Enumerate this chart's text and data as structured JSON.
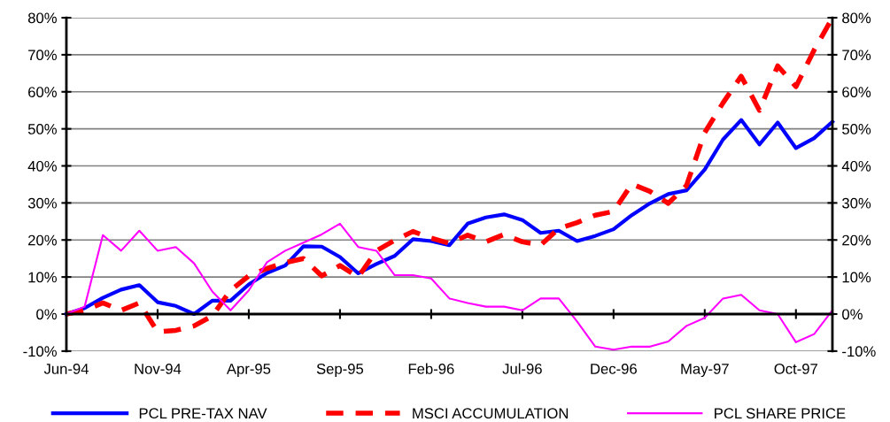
{
  "chart_data": {
    "type": "line",
    "categories": [
      "Jun-94",
      null,
      null,
      null,
      null,
      "Nov-94",
      null,
      null,
      null,
      null,
      "Apr-95",
      null,
      null,
      null,
      null,
      "Sep-95",
      null,
      null,
      null,
      null,
      "Feb-96",
      null,
      null,
      null,
      null,
      "Jul-96",
      null,
      null,
      null,
      null,
      "Dec-96",
      null,
      null,
      null,
      null,
      "May-97",
      null,
      null,
      null,
      null,
      "Oct-97",
      null,
      null
    ],
    "series": [
      {
        "name": "PCL PRE-TAX NAV",
        "color": "#0000ff",
        "line_style": "solid",
        "values": [
          0,
          1.6,
          4.4,
          6.6,
          7.8,
          3.2,
          2.2,
          0,
          3.6,
          3.6,
          8,
          11.1,
          13.1,
          18.3,
          18.2,
          15.4,
          11,
          13.5,
          15.7,
          20.2,
          19.7,
          18.6,
          24.4,
          26.1,
          26.9,
          25.4,
          21.9,
          22.5,
          19.7,
          21.1,
          22.9,
          26.7,
          29.9,
          32.4,
          33.4,
          39,
          47.1,
          52.4,
          45.8,
          51.7,
          44.8,
          47.5,
          51.9
        ]
      },
      {
        "name": "MSCI ACCUMULATION",
        "color": "#ff0000",
        "line_style": "dashed",
        "values": [
          0,
          1,
          3,
          1,
          3,
          -4.8,
          -4.4,
          -3.2,
          -0.5,
          6.4,
          10.3,
          12.3,
          13.9,
          15,
          10.3,
          13.1,
          10,
          17.1,
          19.9,
          22.3,
          20.5,
          19.1,
          21.3,
          19.5,
          21.5,
          19.5,
          18.6,
          23.1,
          24.7,
          26.7,
          27.7,
          35.1,
          33.1,
          29.9,
          34.7,
          49,
          57,
          64.2,
          55,
          67,
          61.4,
          71.3,
          80
        ]
      },
      {
        "name": "PCL SHARE PRICE",
        "color": "#ff00ff",
        "line_style": "solid",
        "values": [
          0,
          2,
          21.3,
          17.1,
          22.5,
          17.1,
          18.1,
          13.7,
          6.1,
          1,
          6.4,
          14,
          17.1,
          19.3,
          21.5,
          24.4,
          18.1,
          17.1,
          10.5,
          10.5,
          9.6,
          4.2,
          3,
          2,
          2,
          1,
          4.2,
          4.2,
          -2,
          -8.8,
          -9.6,
          -8.8,
          -8.8,
          -7.4,
          -3.2,
          -1,
          4.2,
          5.2,
          1,
          0,
          -7.6,
          -5.4,
          1
        ]
      }
    ],
    "ylim": [
      -10,
      80
    ],
    "yticks": [
      {
        "value": -10,
        "label": "-10%"
      },
      {
        "value": 0,
        "label": "0%"
      },
      {
        "value": 10,
        "label": "10%"
      },
      {
        "value": 20,
        "label": "20%"
      },
      {
        "value": 30,
        "label": "30%"
      },
      {
        "value": 40,
        "label": "40%"
      },
      {
        "value": 50,
        "label": "50%"
      },
      {
        "value": 60,
        "label": "60%"
      },
      {
        "value": 70,
        "label": "70%"
      },
      {
        "value": 80,
        "label": "80%"
      }
    ],
    "y2lim": [
      -10,
      80
    ],
    "y2ticks": [
      {
        "value": -10,
        "label": "-10%"
      },
      {
        "value": 0,
        "label": "0%"
      },
      {
        "value": 10,
        "label": "10%"
      },
      {
        "value": 20,
        "label": "20%"
      },
      {
        "value": 30,
        "label": "30%"
      },
      {
        "value": 40,
        "label": "40%"
      },
      {
        "value": 50,
        "label": "50%"
      },
      {
        "value": 60,
        "label": "60%"
      },
      {
        "value": 70,
        "label": "70%"
      },
      {
        "value": 80,
        "label": "80%"
      }
    ],
    "grid": "y",
    "legend": "bottom",
    "marker": "none"
  }
}
